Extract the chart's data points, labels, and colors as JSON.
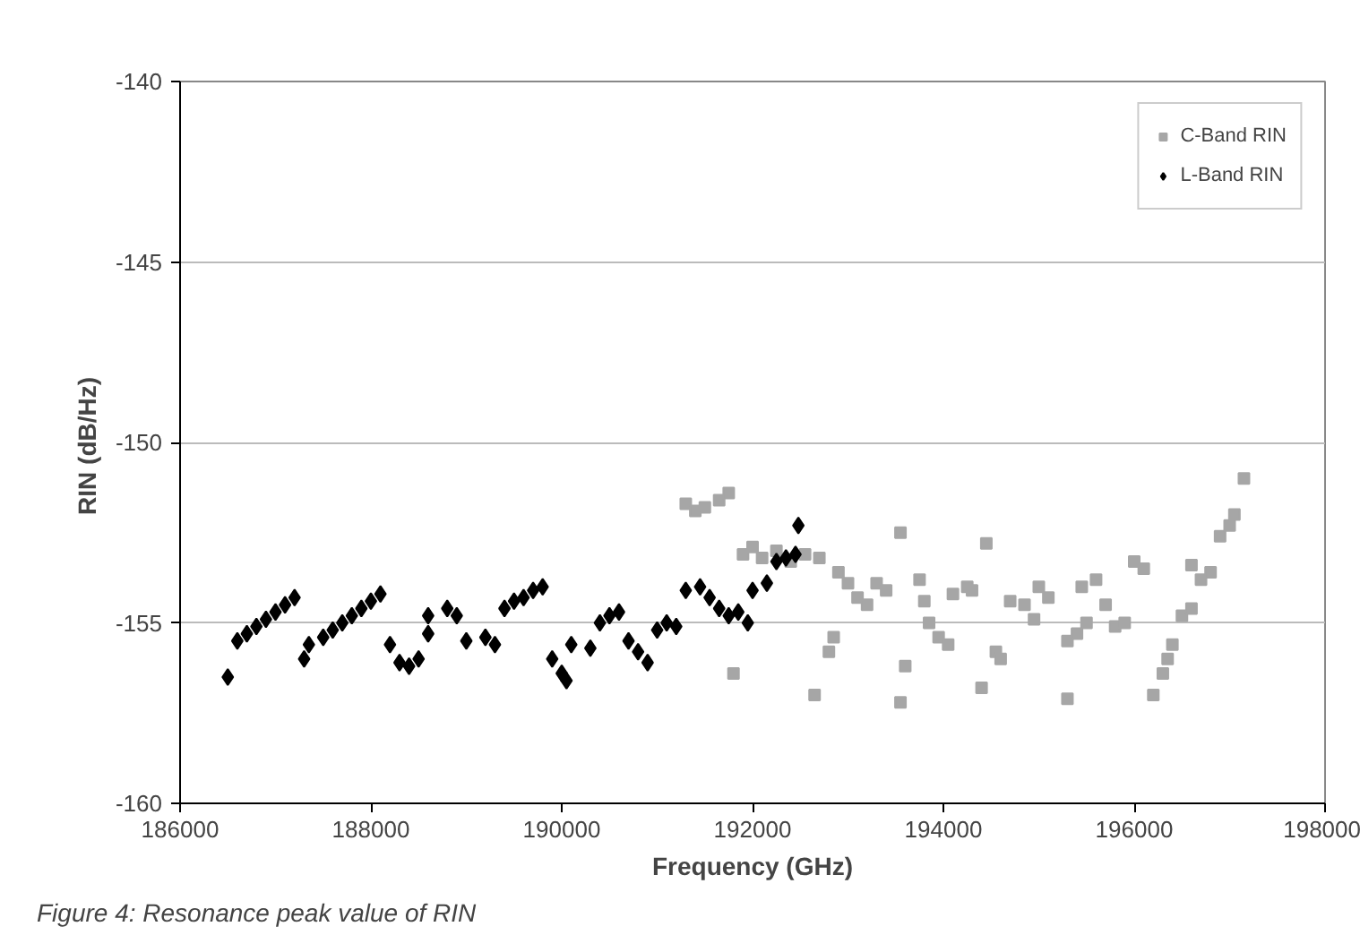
{
  "chart_data": {
    "type": "scatter",
    "xlabel": "Frequency (GHz)",
    "ylabel": "RIN  (dB/Hz)",
    "xlim": [
      186000,
      198000
    ],
    "xticks": [
      186000,
      188000,
      190000,
      192000,
      194000,
      196000,
      198000
    ],
    "ylim": [
      -160,
      -140
    ],
    "yticks": [
      -160,
      -155,
      -150,
      -145,
      -140
    ],
    "grid": "y",
    "legend": "top right",
    "annotations": [
      "Figure 4: Resonance peak value of RIN"
    ],
    "series": [
      {
        "name": "C-Band RIN",
        "color": "#a6a6a6",
        "marker": "square",
        "x": [
          191300,
          191400,
          191500,
          191650,
          191750,
          191800,
          191900,
          192000,
          192100,
          192250,
          192400,
          192550,
          192700,
          192650,
          192800,
          192850,
          192900,
          193000,
          193100,
          193200,
          193300,
          193400,
          193550,
          193550,
          193600,
          193750,
          193800,
          193850,
          193950,
          194050,
          194100,
          194250,
          194300,
          194450,
          194400,
          194550,
          194600,
          194700,
          194850,
          194950,
          195000,
          195100,
          195300,
          195300,
          195400,
          195500,
          195450,
          195600,
          195700,
          195800,
          195900,
          196000,
          196100,
          196200,
          196300,
          196350,
          196400,
          196500,
          196600,
          196600,
          196700,
          196800,
          196900,
          197000,
          197050,
          197150
        ],
        "values": [
          -151.7,
          -151.9,
          -151.8,
          -151.6,
          -151.4,
          -156.4,
          -153.1,
          -152.9,
          -153.2,
          -153.0,
          -153.3,
          -153.1,
          -153.2,
          -157.0,
          -155.8,
          -155.4,
          -153.6,
          -153.9,
          -154.3,
          -154.5,
          -153.9,
          -154.1,
          -152.5,
          -157.2,
          -156.2,
          -153.8,
          -154.4,
          -155.0,
          -155.4,
          -155.6,
          -154.2,
          -154.0,
          -154.1,
          -152.8,
          -156.8,
          -155.8,
          -156.0,
          -154.4,
          -154.5,
          -154.9,
          -154.0,
          -154.3,
          -157.1,
          -155.5,
          -155.3,
          -155.0,
          -154.0,
          -153.8,
          -154.5,
          -155.1,
          -155.0,
          -153.3,
          -153.5,
          -157.0,
          -156.4,
          -156.0,
          -155.6,
          -154.8,
          -154.6,
          -153.4,
          -153.8,
          -153.6,
          -152.6,
          -152.3,
          -152.0,
          -151.0
        ]
      },
      {
        "name": "L-Band RIN",
        "color": "#000000",
        "marker": "diamond",
        "x": [
          186500,
          186600,
          186700,
          186800,
          186900,
          187000,
          187100,
          187200,
          187300,
          187350,
          187500,
          187600,
          187700,
          187800,
          187900,
          188000,
          188100,
          188200,
          188300,
          188400,
          188500,
          188600,
          188600,
          188800,
          188900,
          189000,
          189200,
          189300,
          189400,
          189500,
          189600,
          189700,
          189800,
          189900,
          190000,
          190050,
          190100,
          190300,
          190400,
          190500,
          190600,
          190700,
          190800,
          190900,
          191000,
          191100,
          191200,
          191300,
          191450,
          191550,
          191650,
          191750,
          191850,
          191950,
          192000,
          192150,
          192250,
          192350,
          192450,
          192480
        ],
        "values": [
          -156.5,
          -155.5,
          -155.3,
          -155.1,
          -154.9,
          -154.7,
          -154.5,
          -154.3,
          -156.0,
          -155.6,
          -155.4,
          -155.2,
          -155.0,
          -154.8,
          -154.6,
          -154.4,
          -154.2,
          -155.6,
          -156.1,
          -156.2,
          -156.0,
          -155.3,
          -154.8,
          -154.6,
          -154.8,
          -155.5,
          -155.4,
          -155.6,
          -154.6,
          -154.4,
          -154.3,
          -154.1,
          -154.0,
          -156.0,
          -156.4,
          -156.6,
          -155.6,
          -155.7,
          -155.0,
          -154.8,
          -154.7,
          -155.5,
          -155.8,
          -156.1,
          -155.2,
          -155.0,
          -155.1,
          -154.1,
          -154.0,
          -154.3,
          -154.6,
          -154.8,
          -154.7,
          -155.0,
          -154.1,
          -153.9,
          -153.3,
          -153.2,
          -153.1,
          -152.3
        ]
      }
    ]
  }
}
